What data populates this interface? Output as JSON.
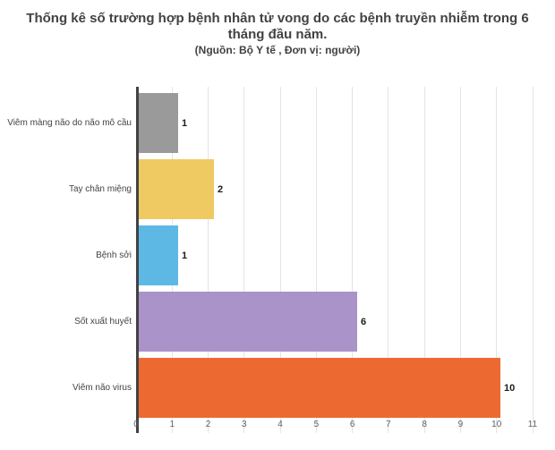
{
  "chart_data": {
    "type": "bar",
    "orientation": "horizontal",
    "title": "Thống kê số trường hợp bệnh nhân tử vong do các bệnh truyền nhiễm trong 6 tháng đầu năm.",
    "subtitle": "(Nguồn: Bộ Y tế , Đơn vị: người)",
    "categories": [
      "Viêm màng não do não mô cầu",
      "Tay chân miệng",
      "Bệnh sởi",
      "Sốt xuất huyết",
      "Viêm não virus"
    ],
    "values": [
      1,
      2,
      1,
      6,
      10
    ],
    "value_labels": [
      "1",
      "2",
      "1",
      "6",
      "10"
    ],
    "bar_colors": [
      "#9a9a9a",
      "#efca62",
      "#5db9e4",
      "#a993c9",
      "#ec6a31"
    ],
    "xlabel": "",
    "ylabel": "",
    "xlim": [
      0,
      11
    ],
    "x_ticks": [
      0,
      1,
      2,
      3,
      4,
      5,
      6,
      7,
      8,
      9,
      10,
      11
    ],
    "grid": true,
    "legend": "none"
  },
  "style": {
    "axis_color": "#424242",
    "gridline_color": "#e4e4e4",
    "title_color": "#424242",
    "category_label_color": "#424242",
    "tick_label_color": "#5f5f5f",
    "value_label_color": "#1c1c1c",
    "background_color": "#ffffff"
  }
}
